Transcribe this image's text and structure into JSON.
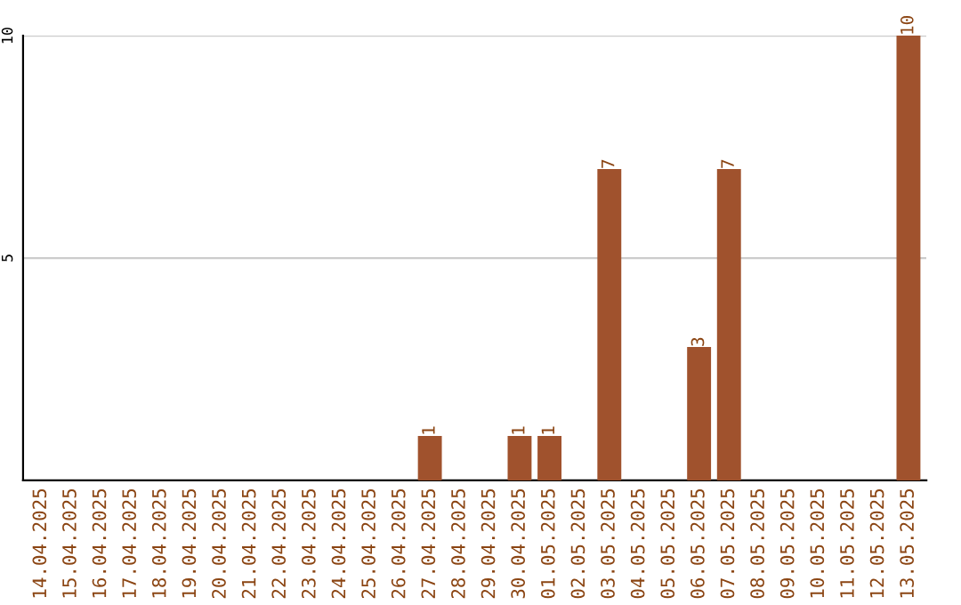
{
  "chart_data": {
    "type": "bar",
    "categories": [
      "14.04.2025",
      "15.04.2025",
      "16.04.2025",
      "17.04.2025",
      "18.04.2025",
      "19.04.2025",
      "20.04.2025",
      "21.04.2025",
      "22.04.2025",
      "23.04.2025",
      "24.04.2025",
      "25.04.2025",
      "26.04.2025",
      "27.04.2025",
      "28.04.2025",
      "29.04.2025",
      "30.04.2025",
      "01.05.2025",
      "02.05.2025",
      "03.05.2025",
      "04.05.2025",
      "05.05.2025",
      "06.05.2025",
      "07.05.2025",
      "08.05.2025",
      "09.05.2025",
      "10.05.2025",
      "11.05.2025",
      "12.05.2025",
      "13.05.2025"
    ],
    "values": [
      0,
      0,
      0,
      0,
      0,
      0,
      0,
      0,
      0,
      0,
      0,
      0,
      0,
      1,
      0,
      0,
      1,
      1,
      0,
      7,
      0,
      0,
      3,
      7,
      0,
      0,
      0,
      0,
      0,
      10
    ],
    "value_labels": [
      null,
      null,
      null,
      null,
      null,
      null,
      null,
      null,
      null,
      null,
      null,
      null,
      null,
      "1",
      null,
      null,
      "1",
      "1",
      null,
      "7",
      null,
      null,
      "3",
      "7",
      null,
      null,
      null,
      null,
      null,
      "10"
    ],
    "color": "#a0522d",
    "ylim": [
      0,
      10
    ],
    "yticks": [
      5,
      10
    ],
    "grid": "y"
  }
}
